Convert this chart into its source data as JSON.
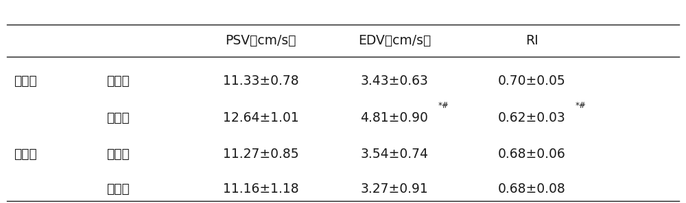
{
  "col_headers": [
    "PSV（cm/s）",
    "EDV（cm/s）",
    "RI"
  ],
  "rows": [
    {
      "group": "治疗组",
      "time": "治疗前",
      "psv": "11.33±0.78",
      "edv": "3.43±0.63",
      "edv_sup": "",
      "ri": "0.70±0.05",
      "ri_sup": ""
    },
    {
      "group": "",
      "time": "治疗后",
      "psv": "12.64±1.01",
      "edv": "4.81±0.90",
      "edv_sup": "*#",
      "ri": "0.62±0.03",
      "ri_sup": "*#"
    },
    {
      "group": "对照组",
      "time": "治疗前",
      "psv": "11.27±0.85",
      "edv": "3.54±0.74",
      "edv_sup": "",
      "ri": "0.68±0.06",
      "ri_sup": ""
    },
    {
      "group": "",
      "time": "治疗后",
      "psv": "11.16±1.18",
      "edv": "3.27±0.91",
      "edv_sup": "",
      "ri": "0.68±0.08",
      "ri_sup": ""
    }
  ],
  "font_size": 13.5,
  "sup_font_size": 8.5,
  "text_color": "#1a1a1a",
  "background_color": "#ffffff",
  "line_color": "#1a1a1a"
}
